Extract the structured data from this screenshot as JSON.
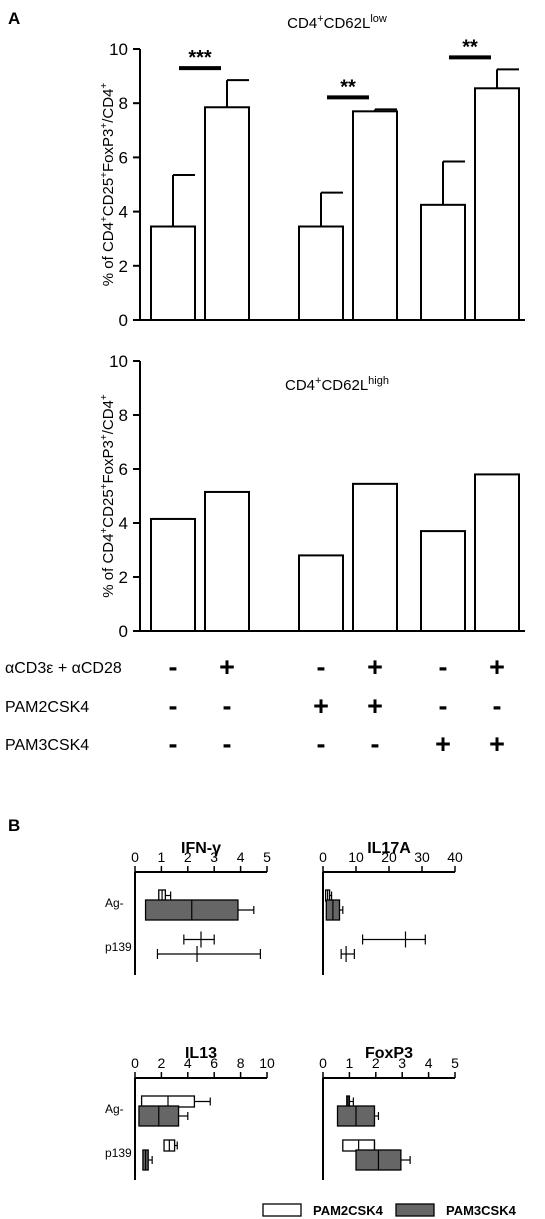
{
  "panels": {
    "a_label": "A",
    "b_label": "B"
  },
  "chart_data": [
    {
      "id": "A1",
      "type": "bar",
      "title": "CD4+CD62Llow",
      "title_parts": {
        "base": "CD4",
        "sup1": "+",
        "mid": "CD62L",
        "sup2": "low"
      },
      "ylabel": "% of CD4+CD25+FoxP3+/CD4+",
      "ylim": [
        0,
        10
      ],
      "yticks": [
        "0",
        "2",
        "4",
        "6",
        "8",
        "10"
      ],
      "values": [
        3.45,
        7.85,
        3.45,
        7.7,
        4.25,
        8.55
      ],
      "errors": [
        1.9,
        1.0,
        1.25,
        0.07,
        1.6,
        0.7
      ],
      "significance": [
        {
          "pair": [
            0,
            1
          ],
          "label": "***"
        },
        {
          "pair": [
            2,
            3
          ],
          "label": "**"
        },
        {
          "pair": [
            4,
            5
          ],
          "label": "**"
        }
      ]
    },
    {
      "id": "A2",
      "type": "bar",
      "title": "CD4+CD62Lhigh",
      "title_parts": {
        "base": "CD4",
        "sup1": "+",
        "mid": "CD62L",
        "sup2": "high"
      },
      "ylabel": "% of CD4+CD25+FoxP3+/CD4+",
      "ylim": [
        0,
        10
      ],
      "yticks": [
        "0",
        "2",
        "4",
        "6",
        "8",
        "10"
      ],
      "values": [
        4.15,
        5.15,
        2.8,
        5.45,
        3.7,
        5.8
      ]
    },
    {
      "id": "B1",
      "type": "bar",
      "orientation": "horizontal",
      "title": "IFN-γ",
      "xlim": [
        0,
        5
      ],
      "xticks": [
        "0",
        "1",
        "2",
        "3",
        "4",
        "5"
      ],
      "groups": [
        "Ag-",
        "p139"
      ],
      "series": [
        {
          "name": "PAM2CSK4",
          "values": [
            1.15,
            2.5
          ],
          "min": [
            0.9,
            1.85
          ],
          "max": [
            1.35,
            3.0
          ]
        },
        {
          "name": "PAM3CSK4",
          "values": [
            3.9,
            2.35
          ],
          "min": [
            0.4,
            0.85
          ],
          "max": [
            4.5,
            4.75
          ]
        }
      ]
    },
    {
      "id": "B2",
      "type": "bar",
      "orientation": "horizontal",
      "title": "IL17A",
      "xlim": [
        0,
        40
      ],
      "xticks": [
        "0",
        "10",
        "20",
        "30",
        "40"
      ],
      "groups": [
        "Ag-",
        "p139"
      ],
      "series": [
        {
          "name": "PAM2CSK4",
          "values": [
            2.0,
            25.0
          ],
          "min": [
            0.8,
            12.0
          ],
          "max": [
            2.6,
            31.0
          ]
        },
        {
          "name": "PAM3CSK4",
          "values": [
            5.0,
            7.0
          ],
          "min": [
            1.0,
            5.5
          ],
          "max": [
            6.0,
            9.5
          ]
        }
      ]
    },
    {
      "id": "B3",
      "type": "bar",
      "orientation": "horizontal",
      "title": "IL13",
      "xlim": [
        0,
        10
      ],
      "xticks": [
        "0",
        "2",
        "4",
        "6",
        "8",
        "10"
      ],
      "groups": [
        "Ag-",
        "p139"
      ],
      "series": [
        {
          "name": "PAM2CSK4",
          "values": [
            4.5,
            3.0
          ],
          "min": [
            0.5,
            2.2
          ],
          "max": [
            5.7,
            3.2
          ]
        },
        {
          "name": "PAM3CSK4",
          "values": [
            3.3,
            1.0
          ],
          "min": [
            0.3,
            0.6
          ],
          "max": [
            4.0,
            1.3
          ]
        }
      ]
    },
    {
      "id": "B4",
      "type": "bar",
      "orientation": "horizontal",
      "title": "FoxP3",
      "xlim": [
        0,
        5
      ],
      "xticks": [
        "0",
        "1",
        "2",
        "3",
        "4",
        "5"
      ],
      "groups": [
        "Ag-",
        "p139"
      ],
      "series": [
        {
          "name": "PAM2CSK4",
          "values": [
            1.0,
            1.95
          ],
          "min": [
            0.9,
            0.75
          ],
          "max": [
            1.15,
            1.95
          ]
        },
        {
          "name": "PAM3CSK4",
          "values": [
            1.95,
            2.95
          ],
          "min": [
            0.55,
            1.25
          ],
          "max": [
            2.1,
            3.3
          ]
        }
      ]
    }
  ],
  "conditions": {
    "rows": [
      {
        "label": "αCD3ε + αCD28",
        "signs": [
          "-",
          "+",
          "-",
          "+",
          "-",
          "+"
        ]
      },
      {
        "label": "PAM2CSK4",
        "signs": [
          "-",
          "-",
          "+",
          "+",
          "-",
          "-"
        ]
      },
      {
        "label": "PAM3CSK4",
        "signs": [
          "-",
          "-",
          "-",
          "-",
          "+",
          "+"
        ]
      }
    ]
  },
  "legend": [
    {
      "label": "PAM2CSK4",
      "color": "#ffffff"
    },
    {
      "label": "PAM3CSK4",
      "color": "#666666"
    }
  ],
  "colors": {
    "pam2": "#ffffff",
    "pam3": "#666666",
    "stroke": "#000000"
  }
}
